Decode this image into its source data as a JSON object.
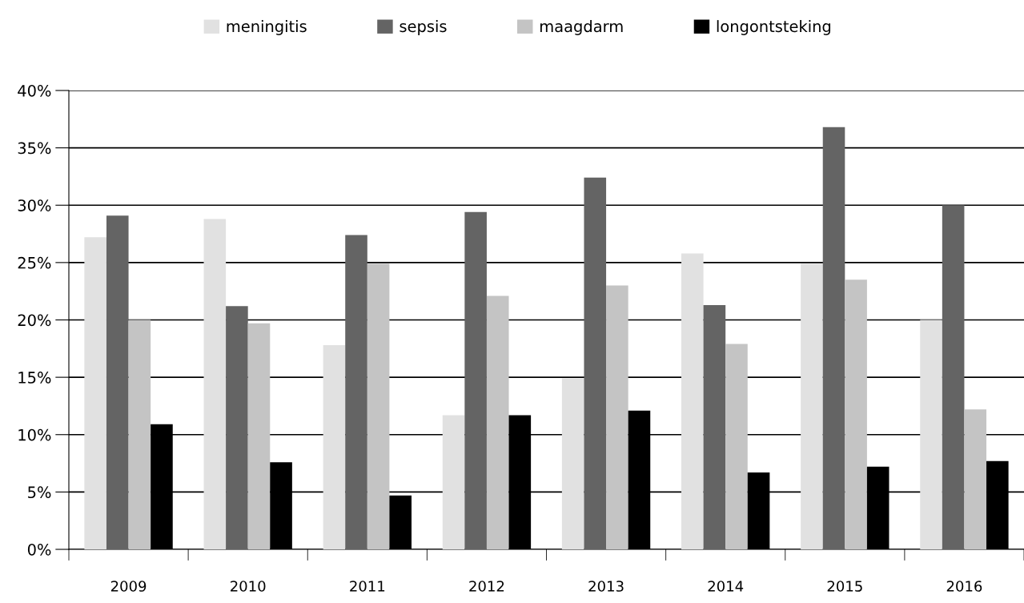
{
  "chart_data": {
    "type": "bar",
    "categories": [
      "2009",
      "2010",
      "2011",
      "2012",
      "2013",
      "2014",
      "2015",
      "2016"
    ],
    "series": [
      {
        "name": "meningitis",
        "color": "#e1e1e1",
        "values": [
          27.2,
          28.8,
          17.8,
          11.7,
          14.9,
          25.8,
          24.9,
          20.0
        ]
      },
      {
        "name": "sepsis",
        "color": "#646464",
        "values": [
          29.1,
          21.2,
          27.4,
          29.4,
          32.4,
          21.3,
          36.8,
          30.0
        ]
      },
      {
        "name": "maagdarm",
        "color": "#c4c4c4",
        "values": [
          20.0,
          19.7,
          24.9,
          22.1,
          23.0,
          17.9,
          23.5,
          12.2
        ]
      },
      {
        "name": "longontsteking",
        "color": "#000000",
        "values": [
          10.9,
          7.6,
          4.7,
          11.7,
          12.1,
          6.7,
          7.2,
          7.7
        ]
      }
    ],
    "ylim": [
      0,
      40
    ],
    "yticks": [
      {
        "value": 0,
        "label": "0%"
      },
      {
        "value": 5,
        "label": "5%"
      },
      {
        "value": 10,
        "label": "10%"
      },
      {
        "value": 15,
        "label": "15%"
      },
      {
        "value": 20,
        "label": "20%"
      },
      {
        "value": 25,
        "label": "25%"
      },
      {
        "value": 30,
        "label": "30%"
      },
      {
        "value": 35,
        "label": "35%"
      },
      {
        "value": 40,
        "label": "40%"
      }
    ],
    "grid": "y",
    "legend": "top"
  }
}
